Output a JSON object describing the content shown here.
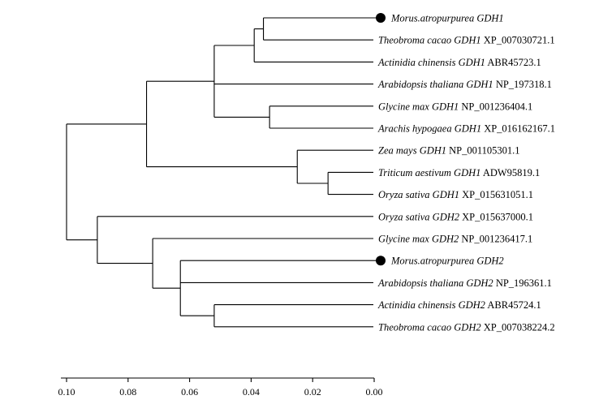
{
  "tree": {
    "leaves": [
      {
        "id": "L1",
        "species": "Morus.atropurpurea GDH1",
        "accession": "",
        "marker": true
      },
      {
        "id": "L2",
        "species": "Theobroma cacao GDH1",
        "accession": "XP_007030721.1",
        "marker": false
      },
      {
        "id": "L3",
        "species": "Actinidia chinensis GDH1",
        "accession": "ABR45723.1",
        "marker": false
      },
      {
        "id": "L4",
        "species": "Arabidopsis thaliana GDH1",
        "accession": "NP_197318.1",
        "marker": false
      },
      {
        "id": "L5",
        "species": "Glycine max GDH1",
        "accession": "NP_001236404.1",
        "marker": false
      },
      {
        "id": "L6",
        "species": "Arachis hypogaea GDH1",
        "accession": "XP_016162167.1",
        "marker": false
      },
      {
        "id": "L7",
        "species": "Zea mays GDH1",
        "accession": "NP_001105301.1",
        "marker": false
      },
      {
        "id": "L8",
        "species": "Triticum aestivum GDH1",
        "accession": "ADW95819.1",
        "marker": false
      },
      {
        "id": "L9",
        "species": "Oryza sativa GDH1",
        "accession": "XP_015631051.1",
        "marker": false
      },
      {
        "id": "L10",
        "species": "Oryza sativa GDH2",
        "accession": "XP_015637000.1",
        "marker": false
      },
      {
        "id": "L11",
        "species": "Glycine max GDH2",
        "accession": "NP_001236417.1",
        "marker": false
      },
      {
        "id": "L12",
        "species": "Morus.atropurpurea GDH2",
        "accession": "",
        "marker": true
      },
      {
        "id": "L13",
        "species": "Arabidopsis thaliana GDH2",
        "accession": "NP_196361.1",
        "marker": false
      },
      {
        "id": "L14",
        "species": "Actinidia chinensis GDH2",
        "accession": "ABR45724.1",
        "marker": false
      },
      {
        "id": "L15",
        "species": "Theobroma cacao GDH2",
        "accession": "XP_007038224.2",
        "marker": false
      }
    ],
    "clades": [
      {
        "id": "A",
        "children": [
          "L1",
          "L2"
        ],
        "distance": 0.036
      },
      {
        "id": "B",
        "children": [
          "A",
          "L3"
        ],
        "distance": 0.039
      },
      {
        "id": "C",
        "children": [
          "L5",
          "L6"
        ],
        "distance": 0.034
      },
      {
        "id": "D",
        "children": [
          "B",
          "L4",
          "C"
        ],
        "distance": 0.052
      },
      {
        "id": "E",
        "children": [
          "L8",
          "L9"
        ],
        "distance": 0.015
      },
      {
        "id": "F",
        "children": [
          "L7",
          "E"
        ],
        "distance": 0.025
      },
      {
        "id": "G",
        "children": [
          "D",
          "F"
        ],
        "distance": 0.074
      },
      {
        "id": "H",
        "children": [
          "L14",
          "L15"
        ],
        "distance": 0.052
      },
      {
        "id": "I",
        "children": [
          "L12",
          "L13",
          "H"
        ],
        "distance": 0.063
      },
      {
        "id": "J",
        "children": [
          "L11",
          "I"
        ],
        "distance": 0.072
      },
      {
        "id": "K",
        "children": [
          "L10",
          "J"
        ],
        "distance": 0.09
      },
      {
        "id": "ROOT",
        "children": [
          "G",
          "K"
        ],
        "distance": 0.1
      }
    ],
    "root": "ROOT"
  },
  "axis": {
    "min": 0.0,
    "max": 0.1,
    "reversed": true,
    "ticks": [
      0.1,
      0.08,
      0.06,
      0.04,
      0.02,
      0.0
    ],
    "tick_labels": [
      "0.10",
      "0.08",
      "0.06",
      "0.04",
      "0.02",
      "0.00"
    ]
  },
  "colors": {
    "line": "#000000",
    "marker": "#000000"
  }
}
